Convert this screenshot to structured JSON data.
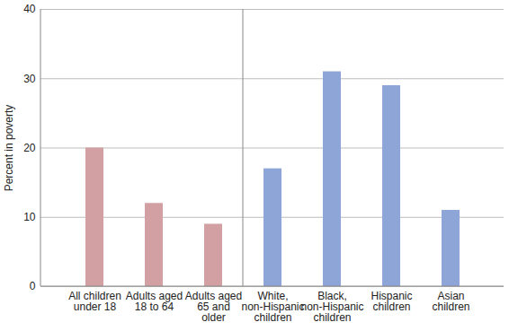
{
  "chart_data": {
    "type": "bar",
    "y_label": "Percent in poverty",
    "categories": [
      "All children\nunder 18",
      "Adults aged\n18 to 64",
      "Adults aged\n65 and\nolder",
      "White,\nnon-Hispanic\nchildren",
      "Black,\nnon-Hispanic\nchildren",
      "Hispanic\nchildren",
      "Asian\nchildren"
    ],
    "values": [
      20,
      12,
      9,
      17,
      31,
      29,
      11
    ],
    "colors": [
      "#d29fa2",
      "#d29fa2",
      "#d29fa2",
      "#8ea5d8",
      "#8ea5d8",
      "#8ea5d8",
      "#8ea5d8"
    ],
    "ylim": [
      0,
      40
    ],
    "yticks": [
      0,
      10,
      20,
      30,
      40
    ],
    "grid": true
  }
}
